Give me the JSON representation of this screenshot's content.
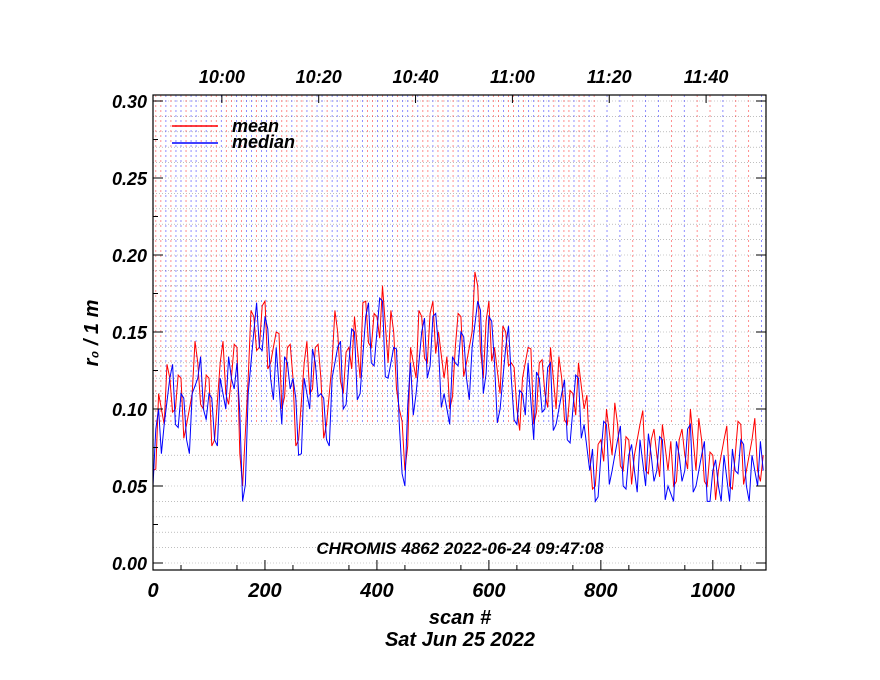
{
  "chart_data": {
    "type": "line",
    "title": "",
    "xlabel": "scan #",
    "xlabel2": "Sat Jun 25 2022",
    "ylabel": "r₀ / 1 m",
    "annotation": "CHROMIS 4862 2022-06-24 09:47:08",
    "xlim": [
      0,
      1095
    ],
    "ylim": [
      0.0,
      0.3
    ],
    "x_ticks": [
      "0",
      "200",
      "400",
      "600",
      "800",
      "1000"
    ],
    "x_tick_values": [
      0,
      200,
      400,
      600,
      800,
      1000
    ],
    "y_ticks": [
      "0.00",
      "0.05",
      "0.10",
      "0.15",
      "0.20",
      "0.25",
      "0.30"
    ],
    "y_tick_values": [
      0.0,
      0.05,
      0.1,
      0.15,
      0.2,
      0.25,
      0.3
    ],
    "top_axis": {
      "labels": [
        "10:00",
        "10:20",
        "10:40",
        "11:00",
        "11:20",
        "11:40"
      ],
      "scan_values": [
        123,
        296,
        469,
        642,
        815,
        988
      ]
    },
    "grid": true,
    "legend_position": "top-left",
    "x_start": 0,
    "x_step": 10,
    "series": [
      {
        "name": "mean",
        "color": "#ff0000",
        "values": [
          0.06,
          0.11,
          0.09,
          0.12,
          0.1,
          0.12,
          0.09,
          0.11,
          0.13,
          0.1,
          0.12,
          0.08,
          0.13,
          0.11,
          0.12,
          0.14,
          0.05,
          0.12,
          0.16,
          0.14,
          0.17,
          0.13,
          0.15,
          0.1,
          0.14,
          0.12,
          0.08,
          0.13,
          0.11,
          0.14,
          0.12,
          0.09,
          0.13,
          0.15,
          0.11,
          0.14,
          0.16,
          0.12,
          0.17,
          0.14,
          0.16,
          0.18,
          0.13,
          0.15,
          0.1,
          0.06,
          0.14,
          0.12,
          0.16,
          0.13,
          0.17,
          0.15,
          0.12,
          0.1,
          0.14,
          0.16,
          0.13,
          0.15,
          0.18,
          0.12,
          0.17,
          0.14,
          0.11,
          0.15,
          0.13,
          0.1,
          0.12,
          0.14,
          0.09,
          0.13,
          0.11,
          0.14,
          0.1,
          0.12,
          0.09,
          0.11,
          0.13,
          0.1,
          0.07,
          0.05,
          0.08,
          0.1,
          0.07,
          0.09,
          0.06,
          0.08,
          0.07,
          0.09,
          0.06,
          0.08,
          0.07,
          0.09,
          0.06,
          0.05,
          0.08,
          0.07,
          0.1,
          0.06,
          0.08,
          0.05,
          0.07,
          0.06,
          0.08,
          0.05,
          0.07,
          0.09,
          0.06,
          0.08,
          0.06,
          0.07
        ]
      },
      {
        "name": "median",
        "color": "#0000ff",
        "values": [
          0.05,
          0.1,
          0.09,
          0.12,
          0.09,
          0.11,
          0.08,
          0.11,
          0.12,
          0.1,
          0.11,
          0.08,
          0.12,
          0.1,
          0.12,
          0.13,
          0.04,
          0.11,
          0.15,
          0.14,
          0.16,
          0.12,
          0.14,
          0.09,
          0.13,
          0.12,
          0.07,
          0.12,
          0.1,
          0.13,
          0.11,
          0.08,
          0.12,
          0.14,
          0.1,
          0.13,
          0.15,
          0.11,
          0.16,
          0.13,
          0.15,
          0.17,
          0.12,
          0.14,
          0.09,
          0.05,
          0.13,
          0.11,
          0.15,
          0.12,
          0.16,
          0.14,
          0.11,
          0.09,
          0.13,
          0.15,
          0.12,
          0.14,
          0.17,
          0.11,
          0.16,
          0.13,
          0.1,
          0.14,
          0.12,
          0.09,
          0.11,
          0.13,
          0.08,
          0.12,
          0.1,
          0.13,
          0.09,
          0.11,
          0.08,
          0.1,
          0.12,
          0.09,
          0.06,
          0.04,
          0.07,
          0.09,
          0.06,
          0.08,
          0.05,
          0.07,
          0.06,
          0.08,
          0.05,
          0.07,
          0.06,
          0.08,
          0.05,
          0.04,
          0.07,
          0.06,
          0.09,
          0.05,
          0.07,
          0.04,
          0.06,
          0.05,
          0.07,
          0.04,
          0.06,
          0.08,
          0.05,
          0.07,
          0.05,
          0.06
        ]
      }
    ]
  }
}
